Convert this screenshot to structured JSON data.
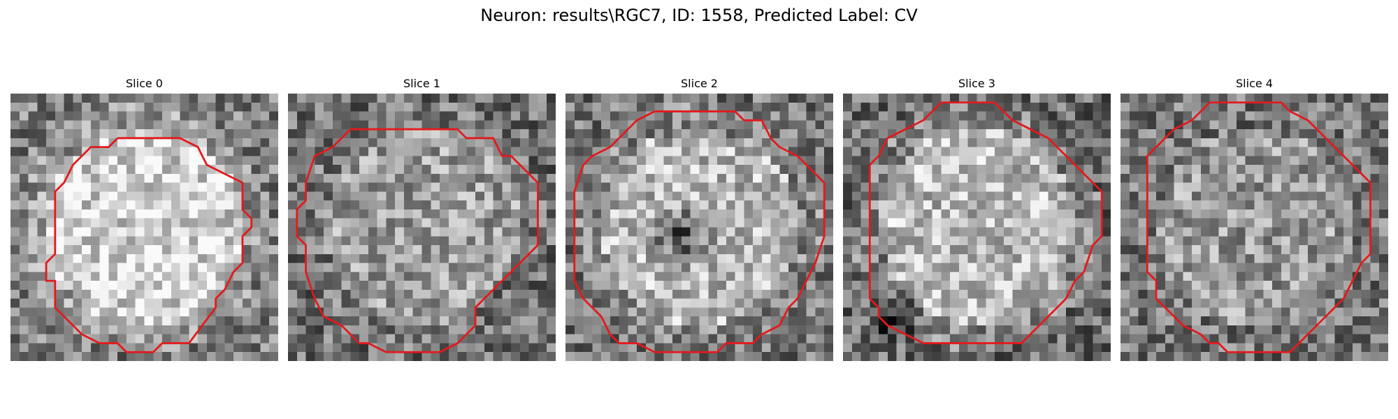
{
  "figure": {
    "title": "Neuron: results\\RGC7, ID: 1558, Predicted Label: CV"
  },
  "grid_size": 30,
  "contour_color": "#e31a1c",
  "panels": [
    {
      "label": "Slice 0",
      "seed": 11,
      "center_brightness": 0.82,
      "ring_brightness": 0.38,
      "dark_spot": null,
      "contour": [
        [
          12,
          5
        ],
        [
          19,
          5
        ],
        [
          21,
          6
        ],
        [
          22,
          8
        ],
        [
          26,
          10
        ],
        [
          26,
          13
        ],
        [
          27,
          14
        ],
        [
          27,
          15
        ],
        [
          26,
          16
        ],
        [
          26,
          19
        ],
        [
          25,
          20
        ],
        [
          24,
          22
        ],
        [
          23,
          23
        ],
        [
          23,
          24
        ],
        [
          20,
          28
        ],
        [
          17,
          28
        ],
        [
          16,
          29
        ],
        [
          13,
          29
        ],
        [
          12,
          28
        ],
        [
          10,
          28
        ],
        [
          8,
          27
        ],
        [
          7,
          26
        ],
        [
          5,
          24
        ],
        [
          5,
          21
        ],
        [
          4,
          21
        ],
        [
          4,
          19
        ],
        [
          5,
          18
        ],
        [
          5,
          11
        ],
        [
          6,
          10
        ],
        [
          7,
          8
        ],
        [
          8,
          7
        ],
        [
          9,
          6
        ],
        [
          11,
          6
        ],
        [
          12,
          5
        ]
      ]
    },
    {
      "label": "Slice 1",
      "seed": 29,
      "center_brightness": 0.62,
      "ring_brightness": 0.32,
      "dark_spot": null,
      "contour": [
        [
          7,
          4
        ],
        [
          19,
          4
        ],
        [
          20,
          5
        ],
        [
          23,
          5
        ],
        [
          24,
          7
        ],
        [
          25,
          7
        ],
        [
          26,
          8
        ],
        [
          27,
          9
        ],
        [
          28,
          10
        ],
        [
          28,
          17
        ],
        [
          27,
          18
        ],
        [
          26,
          19
        ],
        [
          24,
          21
        ],
        [
          23,
          22
        ],
        [
          21,
          24
        ],
        [
          21,
          26
        ],
        [
          19,
          28
        ],
        [
          17,
          29
        ],
        [
          16,
          29
        ],
        [
          15,
          29
        ],
        [
          12,
          29
        ],
        [
          11,
          29
        ],
        [
          9,
          28
        ],
        [
          8,
          28
        ],
        [
          6,
          26
        ],
        [
          4,
          25
        ],
        [
          3,
          23
        ],
        [
          2,
          20
        ],
        [
          2,
          17
        ],
        [
          1,
          16
        ],
        [
          1,
          13
        ],
        [
          2,
          12
        ],
        [
          2,
          10
        ],
        [
          3,
          7
        ],
        [
          5,
          6
        ],
        [
          7,
          4
        ]
      ]
    },
    {
      "label": "Slice 2",
      "seed": 47,
      "center_brightness": 0.72,
      "ring_brightness": 0.34,
      "dark_spot": [
        13,
        16,
        4.2
      ],
      "contour": [
        [
          10,
          2
        ],
        [
          19,
          2
        ],
        [
          20,
          3
        ],
        [
          22,
          3
        ],
        [
          23,
          5
        ],
        [
          24,
          6
        ],
        [
          26,
          7
        ],
        [
          28,
          9
        ],
        [
          29,
          10
        ],
        [
          29,
          11
        ],
        [
          29,
          15
        ],
        [
          29,
          16
        ],
        [
          28,
          19
        ],
        [
          27,
          21
        ],
        [
          26,
          23
        ],
        [
          25,
          24
        ],
        [
          24,
          26
        ],
        [
          22,
          27
        ],
        [
          21,
          28
        ],
        [
          18,
          28
        ],
        [
          17,
          29
        ],
        [
          10,
          29
        ],
        [
          8,
          28
        ],
        [
          6,
          28
        ],
        [
          5,
          27
        ],
        [
          4,
          25
        ],
        [
          2,
          23
        ],
        [
          1,
          21
        ],
        [
          1,
          11
        ],
        [
          2,
          8
        ],
        [
          3,
          7
        ],
        [
          5,
          6
        ],
        [
          7,
          4
        ],
        [
          8,
          3
        ],
        [
          10,
          2
        ]
      ]
    },
    {
      "label": "Slice 3",
      "seed": 63,
      "center_brightness": 0.74,
      "ring_brightness": 0.3,
      "dark_spot": [
        6,
        25,
        3.5
      ],
      "contour": [
        [
          11,
          1
        ],
        [
          17,
          1
        ],
        [
          19,
          3
        ],
        [
          21,
          4
        ],
        [
          23,
          5
        ],
        [
          25,
          7
        ],
        [
          27,
          9
        ],
        [
          29,
          11
        ],
        [
          29,
          16
        ],
        [
          28,
          17
        ],
        [
          27,
          20
        ],
        [
          26,
          21
        ],
        [
          25,
          23
        ],
        [
          24,
          24
        ],
        [
          22,
          26
        ],
        [
          21,
          27
        ],
        [
          20,
          28
        ],
        [
          19,
          28
        ],
        [
          9,
          28
        ],
        [
          7,
          27
        ],
        [
          5,
          26
        ],
        [
          4,
          25
        ],
        [
          4,
          24
        ],
        [
          3,
          23
        ],
        [
          3,
          20
        ],
        [
          3,
          17
        ],
        [
          3,
          12
        ],
        [
          3,
          8
        ],
        [
          4,
          7
        ],
        [
          5,
          5
        ],
        [
          7,
          4
        ],
        [
          9,
          3
        ],
        [
          11,
          1
        ]
      ]
    },
    {
      "label": "Slice 4",
      "seed": 81,
      "center_brightness": 0.6,
      "ring_brightness": 0.34,
      "dark_spot": null,
      "contour": [
        [
          10,
          1
        ],
        [
          18,
          1
        ],
        [
          19,
          2
        ],
        [
          21,
          3
        ],
        [
          22,
          4
        ],
        [
          24,
          6
        ],
        [
          26,
          8
        ],
        [
          27,
          9
        ],
        [
          28,
          10
        ],
        [
          28,
          13
        ],
        [
          28,
          16
        ],
        [
          28,
          18
        ],
        [
          27,
          19
        ],
        [
          26,
          21
        ],
        [
          25,
          23
        ],
        [
          24,
          24
        ],
        [
          22,
          26
        ],
        [
          21,
          27
        ],
        [
          20,
          28
        ],
        [
          19,
          29
        ],
        [
          12,
          29
        ],
        [
          11,
          28
        ],
        [
          10,
          28
        ],
        [
          9,
          27
        ],
        [
          7,
          26
        ],
        [
          6,
          25
        ],
        [
          5,
          24
        ],
        [
          4,
          23
        ],
        [
          4,
          21
        ],
        [
          3,
          20
        ],
        [
          3,
          15
        ],
        [
          3,
          7
        ],
        [
          4,
          6
        ],
        [
          5,
          5
        ],
        [
          6,
          4
        ],
        [
          8,
          3
        ],
        [
          9,
          2
        ],
        [
          10,
          1
        ]
      ]
    }
  ]
}
